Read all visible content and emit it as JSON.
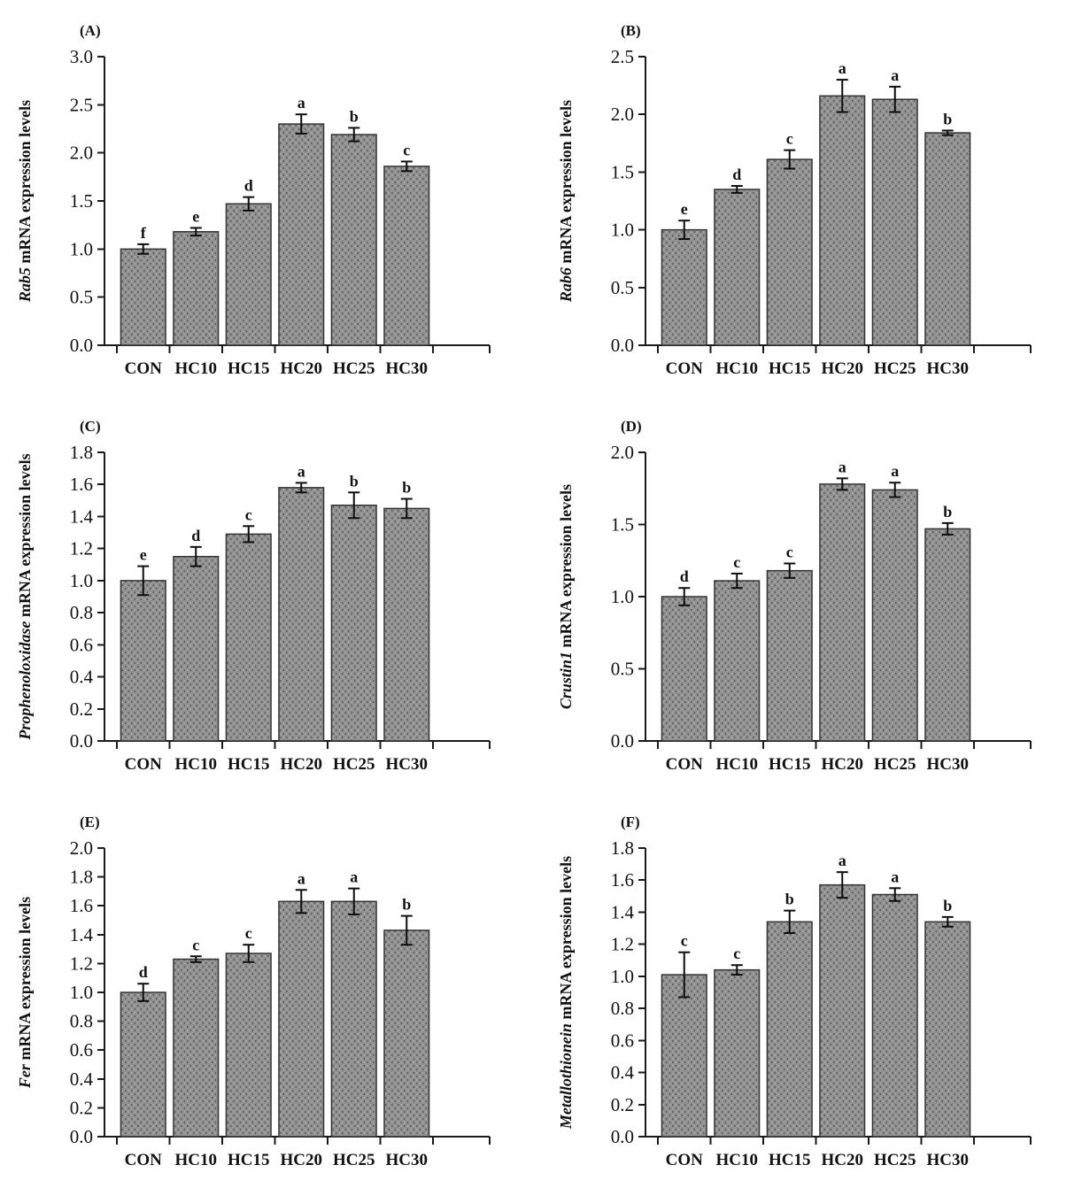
{
  "figure": {
    "background": "#ffffff",
    "bar_fill": "#919191",
    "bar_dot_dark": "#4c4c4c",
    "bar_dot_light": "#b9b9b9",
    "bar_stroke": "#333333",
    "axis_color": "#1a1a1a",
    "error_bar_color": "#0d0d0d",
    "text_color": "#111111"
  },
  "chart_data": [
    {
      "type": "bar",
      "panel_label": "(A)",
      "ylabel_gene": "Rab5",
      "ylabel_rest": " mRNA expression levels",
      "ylabel": "Rab5 mRNA expression levels",
      "categories": [
        "CON",
        "HC10",
        "HC15",
        "HC20",
        "HC25",
        "HC30"
      ],
      "values": [
        1.0,
        1.18,
        1.47,
        2.3,
        2.19,
        1.86
      ],
      "errors": [
        0.05,
        0.04,
        0.07,
        0.1,
        0.07,
        0.05
      ],
      "letters": [
        "f",
        "e",
        "d",
        "a",
        "b",
        "c"
      ],
      "ylim": [
        0.0,
        3.0
      ],
      "ytick_step": 0.5,
      "grid": false
    },
    {
      "type": "bar",
      "panel_label": "(B)",
      "ylabel_gene": "Rab6",
      "ylabel_rest": " mRNA expression levels",
      "ylabel": "Rab6 mRNA expression levels",
      "categories": [
        "CON",
        "HC10",
        "HC15",
        "HC20",
        "HC25",
        "HC30"
      ],
      "values": [
        1.0,
        1.35,
        1.61,
        2.16,
        2.13,
        1.84
      ],
      "errors": [
        0.08,
        0.03,
        0.08,
        0.14,
        0.11,
        0.02
      ],
      "letters": [
        "e",
        "d",
        "c",
        "a",
        "a",
        "b"
      ],
      "ylim": [
        0.0,
        2.5
      ],
      "ytick_step": 0.5,
      "grid": false
    },
    {
      "type": "bar",
      "panel_label": "(C)",
      "ylabel_gene": "Prophenoloxidase",
      "ylabel_rest": " mRNA expression levels",
      "ylabel": "Prophenoloxidase mRNA expression levels",
      "categories": [
        "CON",
        "HC10",
        "HC15",
        "HC20",
        "HC25",
        "HC30"
      ],
      "values": [
        1.0,
        1.15,
        1.29,
        1.58,
        1.47,
        1.45
      ],
      "errors": [
        0.09,
        0.06,
        0.05,
        0.03,
        0.08,
        0.06
      ],
      "letters": [
        "e",
        "d",
        "c",
        "a",
        "b",
        "b"
      ],
      "ylim": [
        0.0,
        1.8
      ],
      "ytick_step": 0.2,
      "grid": false
    },
    {
      "type": "bar",
      "panel_label": "(D)",
      "ylabel_gene": "Crustin1",
      "ylabel_rest": " mRNA expression levels",
      "ylabel": "Crustin1 mRNA expression levels",
      "categories": [
        "CON",
        "HC10",
        "HC15",
        "HC20",
        "HC25",
        "HC30"
      ],
      "values": [
        1.0,
        1.11,
        1.18,
        1.78,
        1.74,
        1.47
      ],
      "errors": [
        0.06,
        0.05,
        0.05,
        0.04,
        0.05,
        0.04
      ],
      "letters": [
        "d",
        "c",
        "c",
        "a",
        "a",
        "b"
      ],
      "ylim": [
        0.0,
        2.0
      ],
      "ytick_step": 0.5,
      "grid": false
    },
    {
      "type": "bar",
      "panel_label": "(E)",
      "ylabel_gene": "Fer",
      "ylabel_rest": " mRNA expression levels",
      "ylabel": "Fer mRNA expression levels",
      "categories": [
        "CON",
        "HC10",
        "HC15",
        "HC20",
        "HC25",
        "HC30"
      ],
      "values": [
        1.0,
        1.23,
        1.27,
        1.63,
        1.63,
        1.43
      ],
      "errors": [
        0.06,
        0.02,
        0.06,
        0.08,
        0.09,
        0.1
      ],
      "letters": [
        "d",
        "c",
        "c",
        "a",
        "a",
        "b"
      ],
      "ylim": [
        0.0,
        2.0
      ],
      "ytick_step": 0.2,
      "grid": false
    },
    {
      "type": "bar",
      "panel_label": "(F)",
      "ylabel_gene": "Metallothionein",
      "ylabel_rest": " mRNA expression levels",
      "ylabel": "Metallothionein mRNA expression levels",
      "categories": [
        "CON",
        "HC10",
        "HC15",
        "HC20",
        "HC25",
        "HC30"
      ],
      "values": [
        1.01,
        1.04,
        1.34,
        1.57,
        1.51,
        1.34
      ],
      "errors": [
        0.14,
        0.03,
        0.07,
        0.08,
        0.04,
        0.03
      ],
      "letters": [
        "c",
        "c",
        "b",
        "a",
        "a",
        "b"
      ],
      "ylim": [
        0.0,
        1.8
      ],
      "ytick_step": 0.2,
      "grid": false
    }
  ]
}
